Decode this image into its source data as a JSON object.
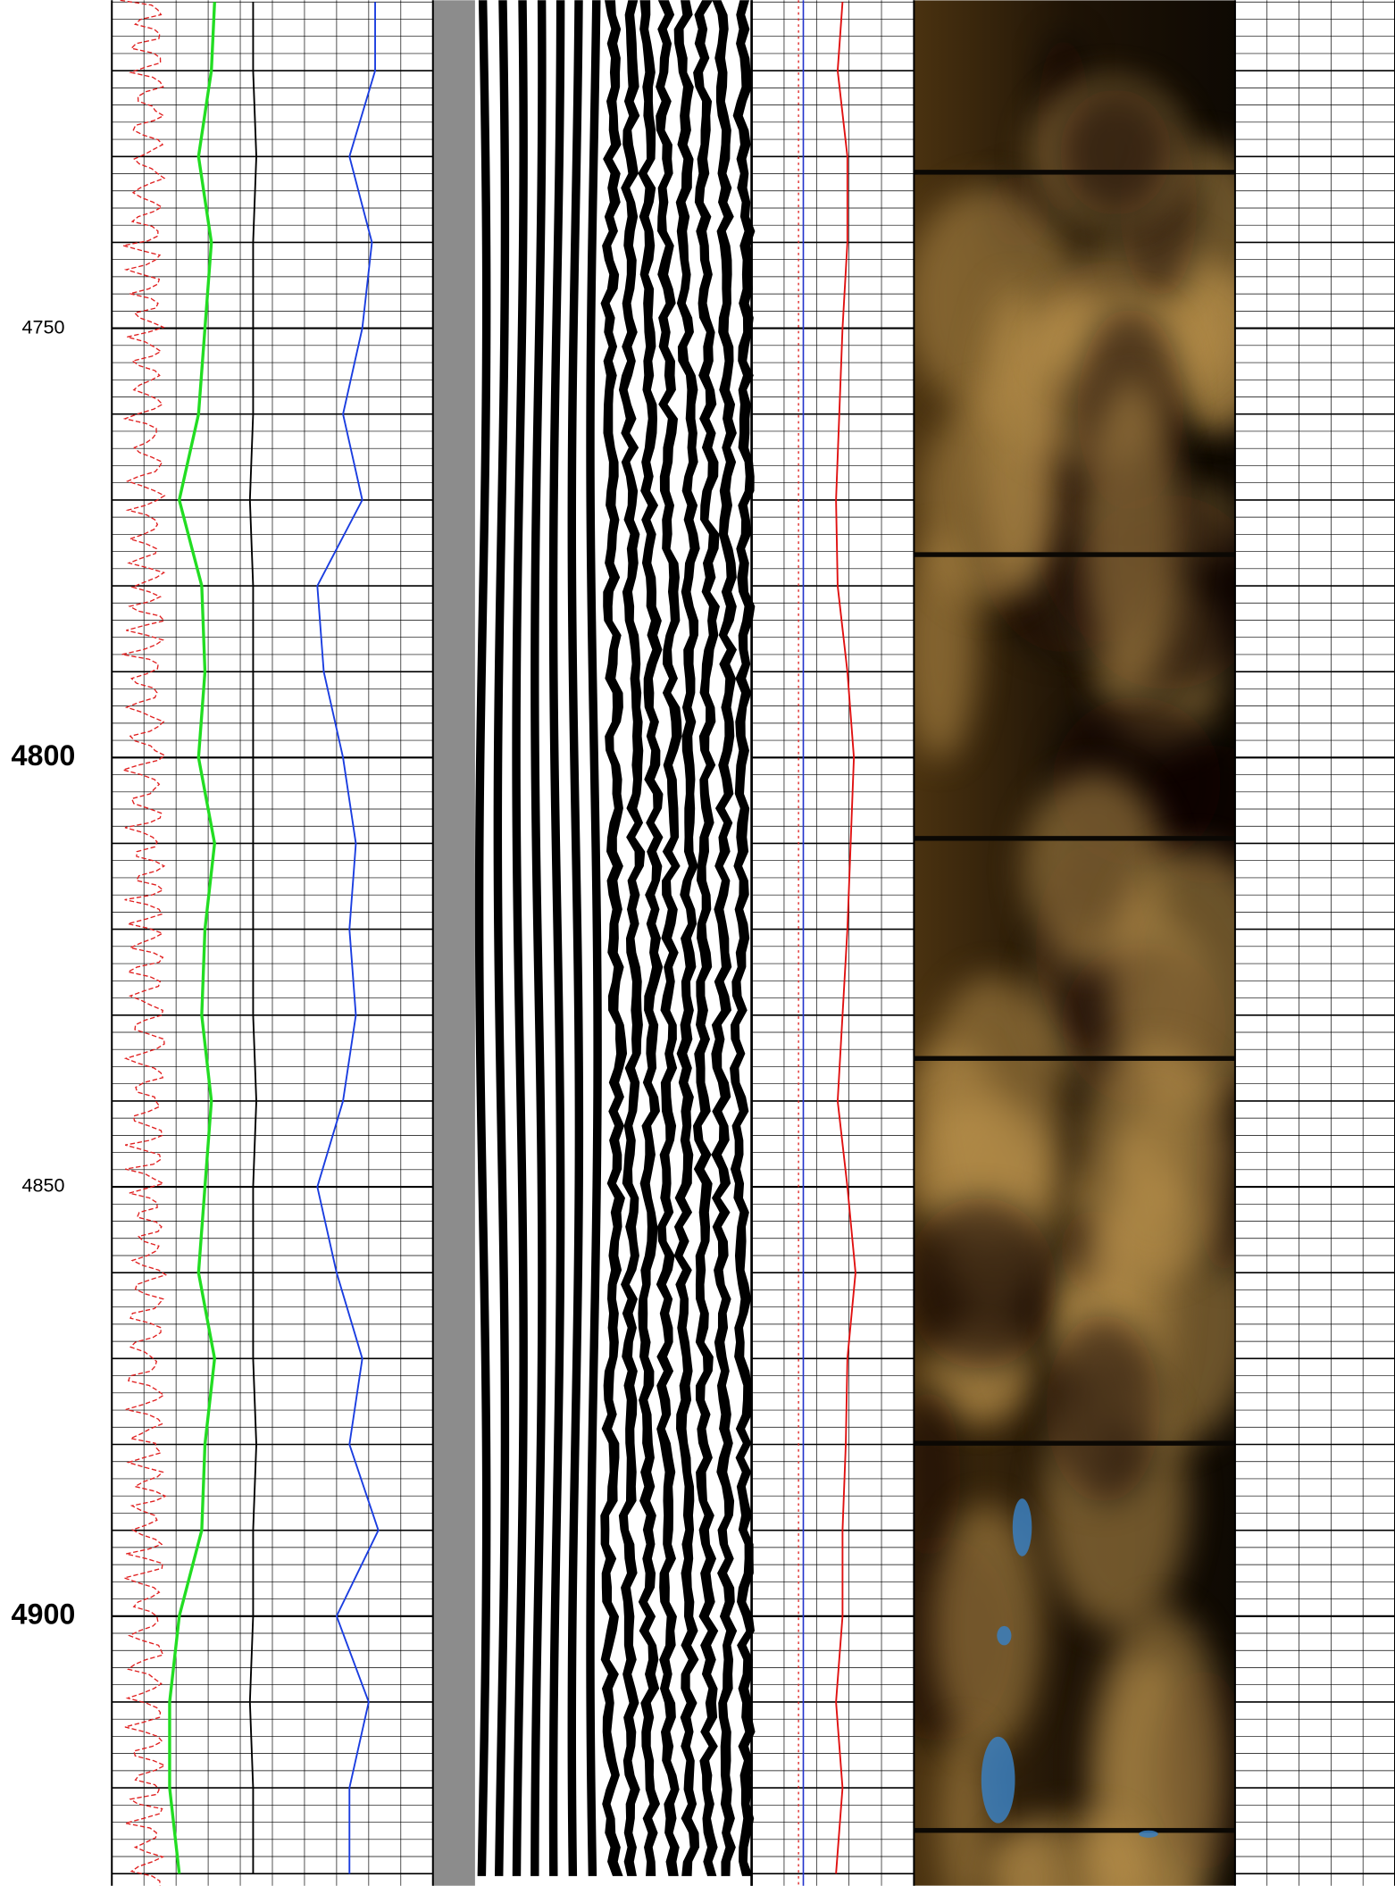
{
  "chart_data": {
    "type": "well-log",
    "ylim": [
      4711.8,
      4931.4
    ],
    "yticks": [
      4750,
      4800,
      4850,
      4900
    ],
    "grid": true,
    "depths": [
      4712,
      4720,
      4730,
      4740,
      4750,
      4760,
      4770,
      4780,
      4790,
      4800,
      4810,
      4820,
      4830,
      4840,
      4850,
      4860,
      4870,
      4880,
      4890,
      4900,
      4910,
      4920,
      4930
    ],
    "left_track": [
      {
        "color": "#22dd22",
        "values": [
          32,
          31,
          27,
          31,
          29,
          27,
          21,
          28,
          29,
          27,
          32,
          29,
          28,
          31,
          29,
          27,
          32,
          29,
          28,
          21,
          18,
          18,
          21
        ]
      },
      {
        "color": "#000000",
        "values": [
          44,
          44,
          45,
          44,
          44,
          44,
          43,
          44,
          44,
          44,
          44,
          44,
          44,
          45,
          44,
          44,
          44,
          45,
          44,
          44,
          43,
          44,
          44
        ]
      },
      {
        "color": "#1a3de0",
        "values": [
          82,
          82,
          74,
          81,
          78,
          72,
          78,
          64,
          66,
          72,
          76,
          74,
          76,
          72,
          64,
          70,
          78,
          74,
          83,
          70,
          80,
          74,
          74
        ]
      }
    ],
    "middle_track": [
      {
        "color": "#e01010",
        "values": [
          56,
          53,
          59,
          59,
          56,
          54,
          52,
          53,
          59,
          63,
          61,
          59,
          56,
          53,
          59,
          64,
          59,
          58,
          56,
          56,
          52,
          56,
          52
        ]
      }
    ]
  }
}
